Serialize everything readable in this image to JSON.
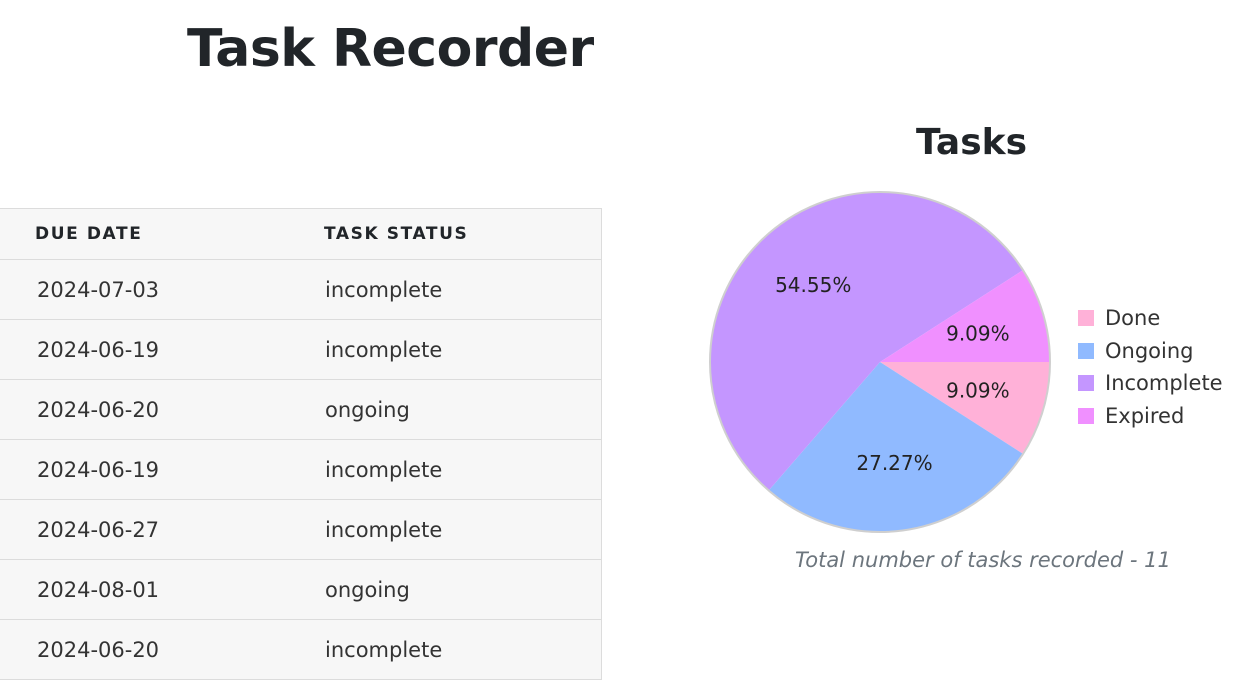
{
  "app_title": "Task Recorder",
  "table": {
    "headers": [
      "DUE DATE",
      "TASK STATUS"
    ],
    "rows": [
      {
        "due_date": "2024-07-03",
        "status": "incomplete"
      },
      {
        "due_date": "2024-06-19",
        "status": "incomplete"
      },
      {
        "due_date": "2024-06-20",
        "status": "ongoing"
      },
      {
        "due_date": "2024-06-19",
        "status": "incomplete"
      },
      {
        "due_date": "2024-06-27",
        "status": "incomplete"
      },
      {
        "due_date": "2024-08-01",
        "status": "ongoing"
      },
      {
        "due_date": "2024-06-20",
        "status": "incomplete"
      }
    ]
  },
  "chart_data": {
    "type": "pie",
    "title": "Tasks",
    "categories": [
      "Done",
      "Ongoing",
      "Incomplete",
      "Expired"
    ],
    "values": [
      1,
      3,
      6,
      1
    ],
    "percent_labels": [
      "9.09%",
      "27.27%",
      "54.55%",
      "9.09%"
    ],
    "colors": [
      "#FFB1D8",
      "#90BAFF",
      "#C496FF",
      "#F090FF"
    ],
    "legend_position": "right"
  },
  "caption": "Total number of tasks recorded - 11"
}
